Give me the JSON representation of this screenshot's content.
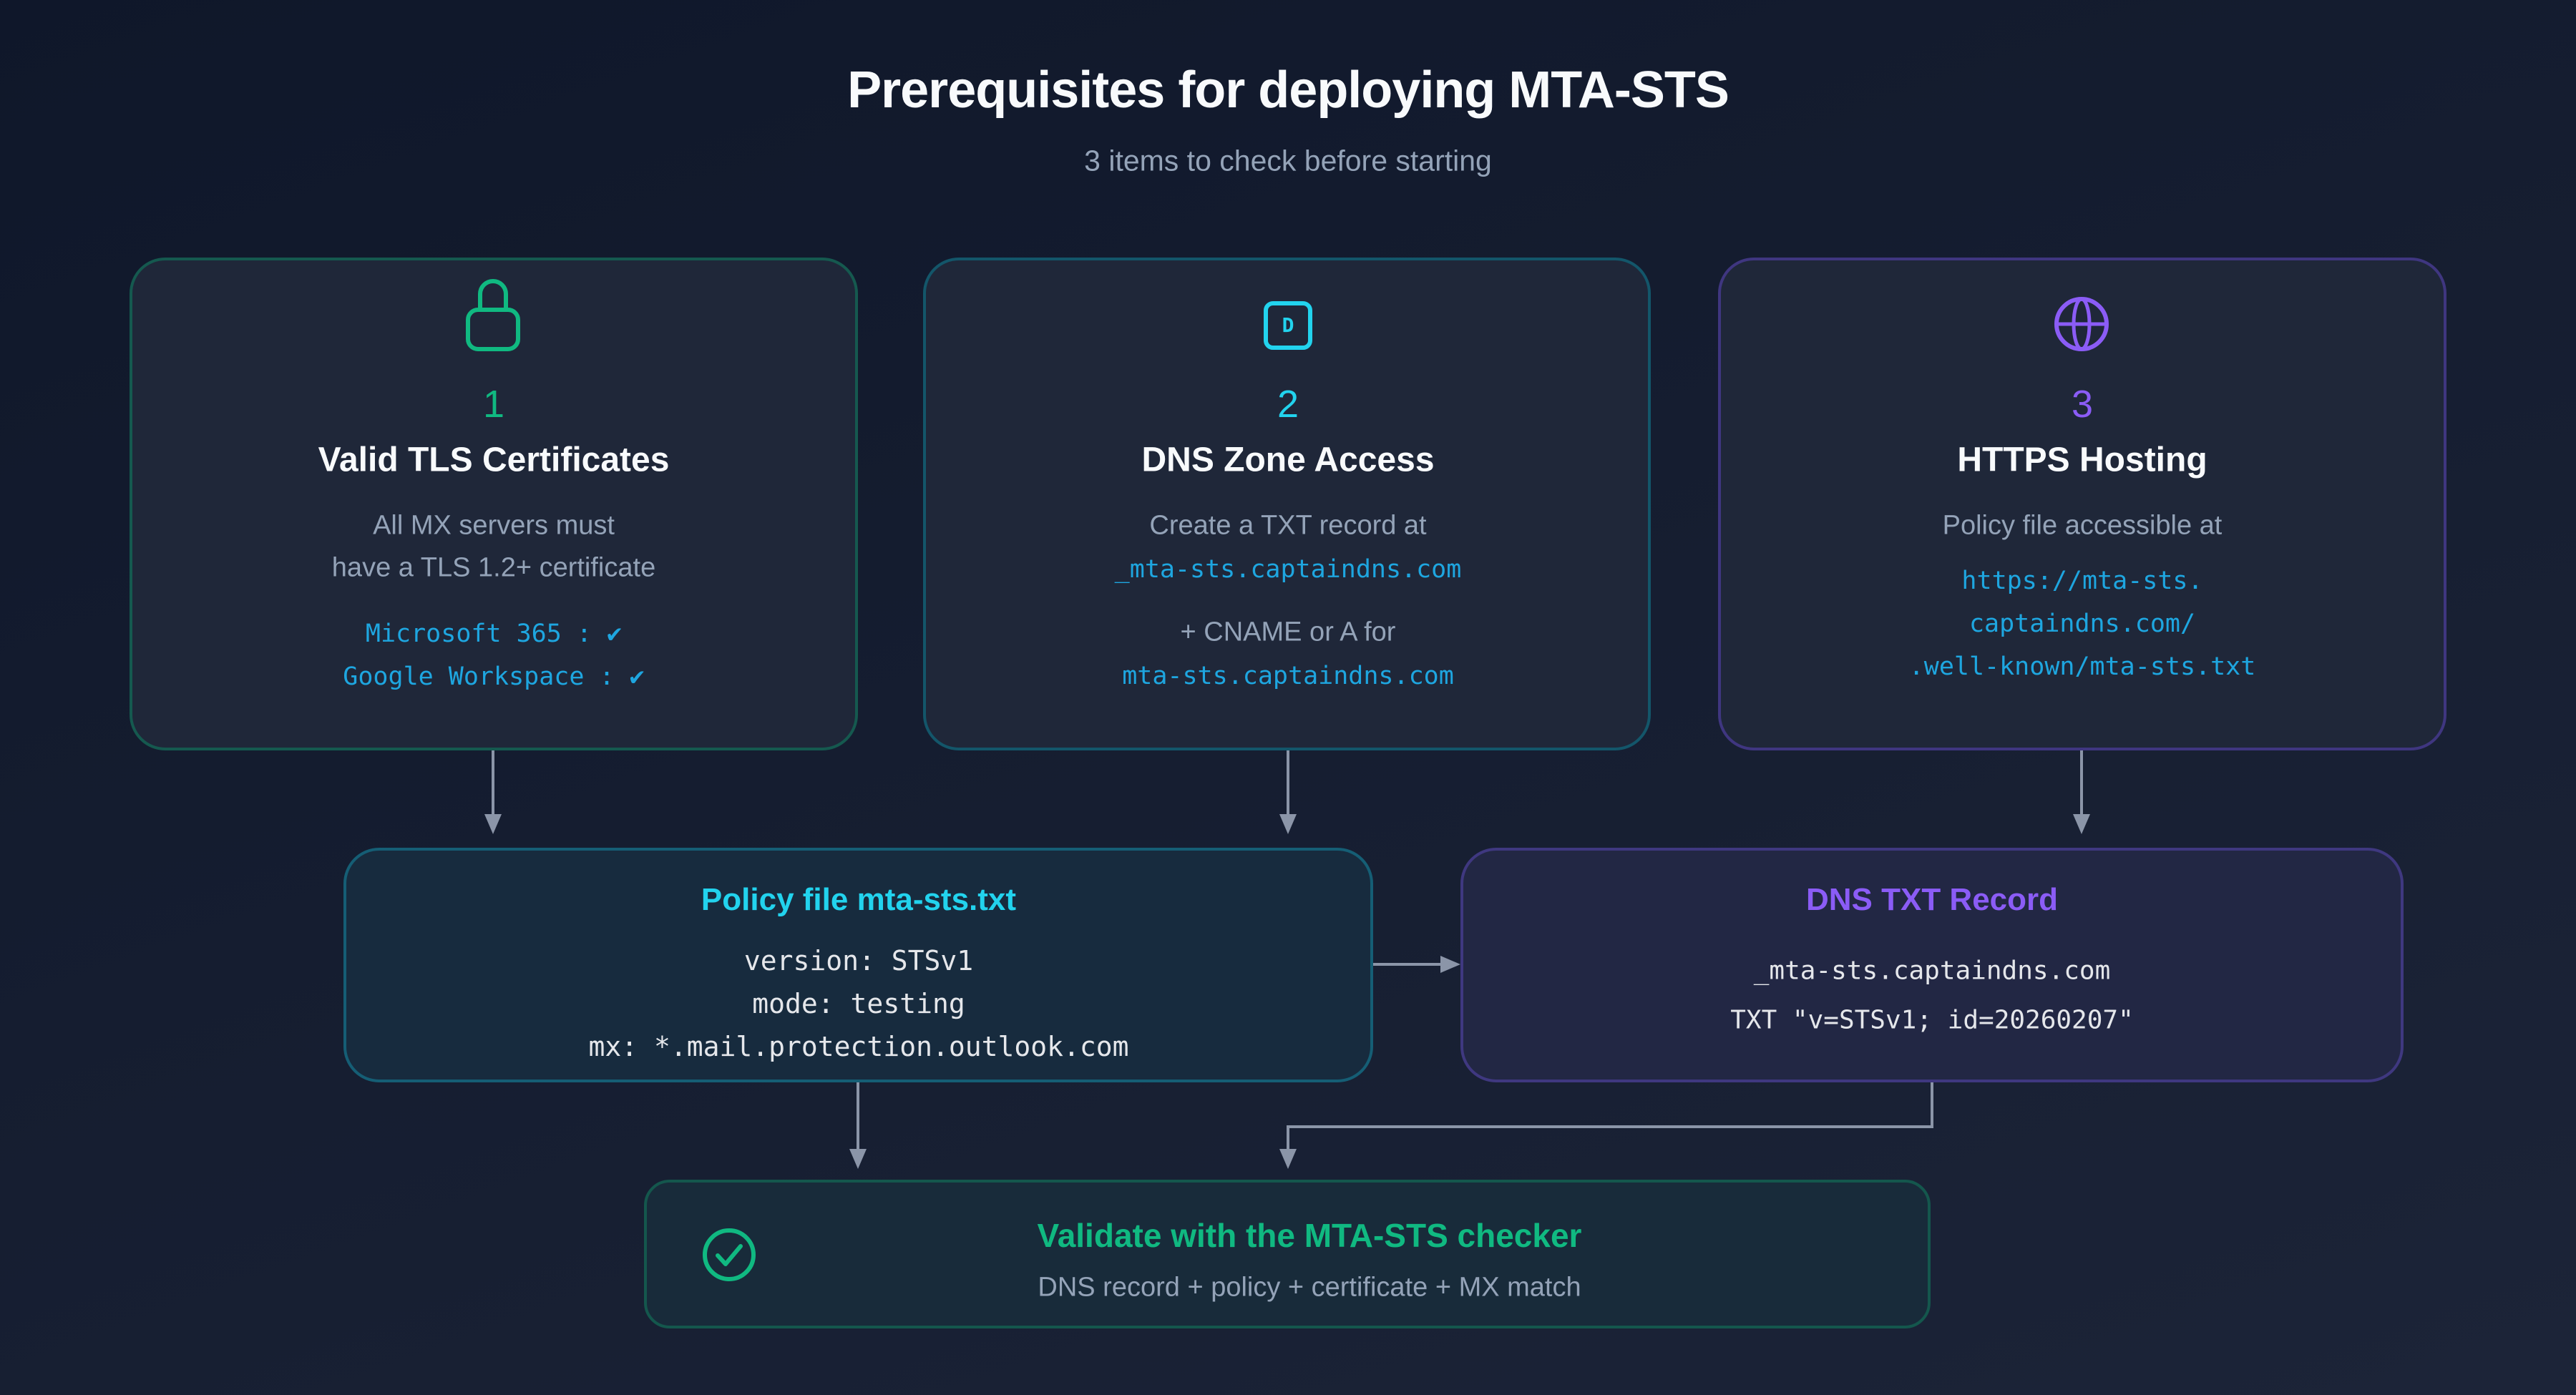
{
  "header": {
    "title": "Prerequisites for deploying MTA-STS",
    "subtitle": "3 items to check before starting"
  },
  "colors": {
    "green": "#10b981",
    "cyan": "#22d3ee",
    "purple": "#8b5cf6",
    "link": "#1ea6e0",
    "muted": "#94a3b8"
  },
  "cards": [
    {
      "icon": "lock-icon",
      "number": "1",
      "title": "Valid TLS Certificates",
      "desc": [
        "All MX servers must",
        "have a TLS 1.2+ certificate"
      ],
      "mono": [
        "Microsoft 365 : ✔",
        "Google Workspace : ✔"
      ]
    },
    {
      "icon": "dns-icon",
      "icon_letter": "D",
      "number": "2",
      "title": "DNS Zone Access",
      "desc": [
        "Create a TXT record at",
        "+ CNAME or A for"
      ],
      "mono": [
        "_mta-sts.captaindns.com",
        "mta-sts.captaindns.com"
      ]
    },
    {
      "icon": "globe-icon",
      "number": "3",
      "title": "HTTPS Hosting",
      "desc": [
        "Policy file accessible at"
      ],
      "mono": [
        "https://mta-sts.",
        "captaindns.com/",
        ".well-known/mta-sts.txt"
      ]
    }
  ],
  "policy": {
    "title": "Policy file mta-sts.txt",
    "lines": [
      "version: STSv1",
      "mode: testing",
      "mx: *.mail.protection.outlook.com"
    ]
  },
  "dns_record": {
    "title": "DNS TXT Record",
    "lines": [
      "_mta-sts.captaindns.com",
      "TXT \"v=STSv1; id=20260207\""
    ]
  },
  "validate": {
    "icon": "check-circle-icon",
    "title": "Validate with the MTA-STS checker",
    "subtitle": "DNS record + policy + certificate + MX match"
  }
}
